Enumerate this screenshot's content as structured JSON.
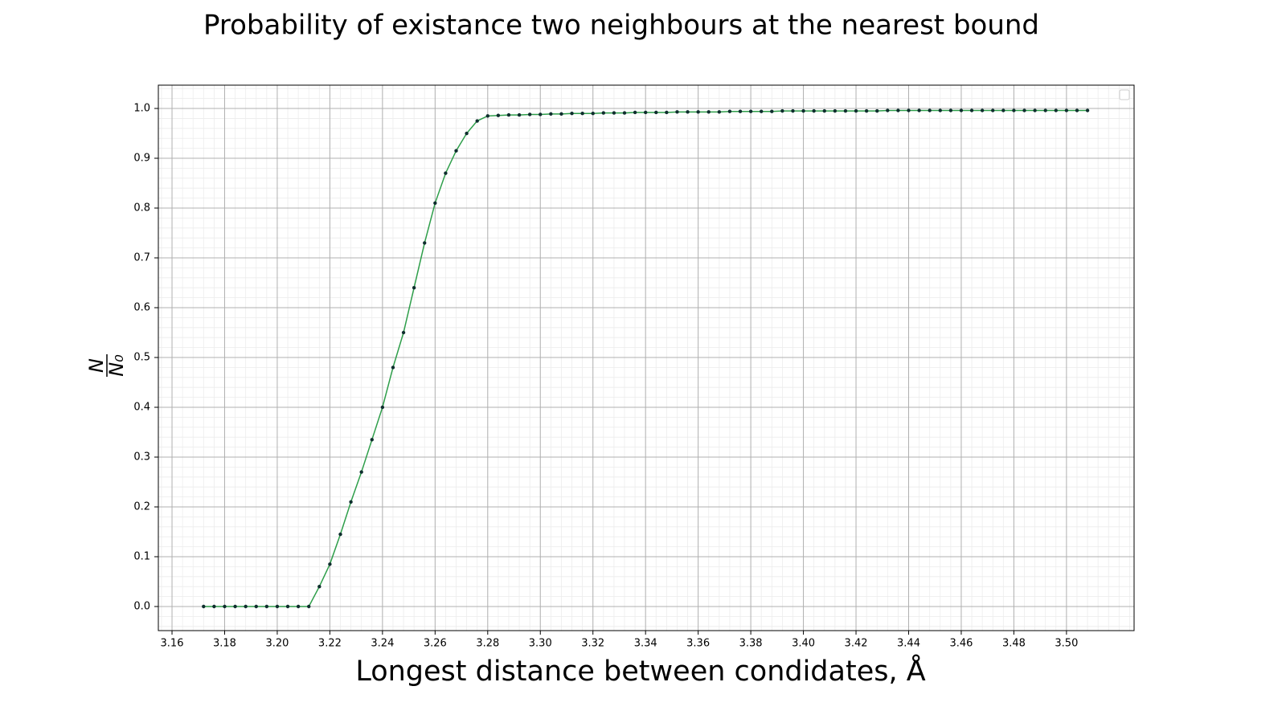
{
  "chart_data": {
    "type": "line",
    "title": "Probability of existance two neighbours at the nearest bound",
    "xlabel": "Longest distance between condidates, Å",
    "ylabel": {
      "numerator": "N",
      "denominator": "N₀"
    },
    "x": [
      3.172,
      3.176,
      3.18,
      3.184,
      3.188,
      3.192,
      3.196,
      3.2,
      3.204,
      3.208,
      3.212,
      3.216,
      3.22,
      3.224,
      3.228,
      3.232,
      3.236,
      3.24,
      3.244,
      3.248,
      3.252,
      3.256,
      3.26,
      3.264,
      3.268,
      3.272,
      3.276,
      3.28,
      3.284,
      3.288,
      3.292,
      3.296,
      3.3,
      3.304,
      3.308,
      3.312,
      3.316,
      3.32,
      3.324,
      3.328,
      3.332,
      3.336,
      3.34,
      3.344,
      3.348,
      3.352,
      3.356,
      3.36,
      3.364,
      3.368,
      3.372,
      3.376,
      3.38,
      3.384,
      3.388,
      3.392,
      3.396,
      3.4,
      3.404,
      3.408,
      3.412,
      3.416,
      3.42,
      3.424,
      3.428,
      3.432,
      3.436,
      3.44,
      3.444,
      3.448,
      3.452,
      3.456,
      3.46,
      3.464,
      3.468,
      3.472,
      3.476,
      3.48,
      3.484,
      3.488,
      3.492,
      3.496,
      3.5,
      3.504,
      3.508
    ],
    "series": [
      {
        "color": "#2e9e4a",
        "marker_color": "#0f2e2e",
        "values": [
          0,
          0,
          0,
          0,
          0,
          0,
          0,
          0,
          0,
          0,
          0,
          0.04,
          0.085,
          0.145,
          0.21,
          0.27,
          0.335,
          0.4,
          0.48,
          0.55,
          0.64,
          0.73,
          0.81,
          0.87,
          0.915,
          0.95,
          0.975,
          0.985,
          0.986,
          0.987,
          0.987,
          0.988,
          0.988,
          0.989,
          0.989,
          0.99,
          0.99,
          0.99,
          0.991,
          0.991,
          0.991,
          0.992,
          0.992,
          0.992,
          0.992,
          0.993,
          0.993,
          0.993,
          0.993,
          0.993,
          0.994,
          0.994,
          0.994,
          0.994,
          0.994,
          0.995,
          0.995,
          0.995,
          0.995,
          0.995,
          0.995,
          0.995,
          0.995,
          0.995,
          0.995,
          0.996,
          0.996,
          0.996,
          0.996,
          0.996,
          0.996,
          0.996,
          0.996,
          0.996,
          0.996,
          0.996,
          0.996,
          0.996,
          0.996,
          0.996,
          0.996,
          0.996,
          0.996,
          0.996,
          0.996
        ]
      }
    ],
    "xlim": [
      3.1548,
      3.5257
    ],
    "ylim": [
      -0.0484,
      1.0468
    ],
    "xticks": [
      3.16,
      3.18,
      {
        "value": 3.2,
        "label": "3.20"
      },
      3.22,
      3.24,
      3.26,
      3.28,
      {
        "value": 3.3,
        "label": "3.30"
      },
      3.32,
      3.34,
      3.36,
      3.38,
      {
        "value": 3.4,
        "label": "3.40"
      },
      3.42,
      3.44,
      3.46,
      3.48,
      {
        "value": 3.5,
        "label": "3.50"
      }
    ],
    "yticks": [
      {
        "value": 0,
        "label": "0.0"
      },
      0.1,
      0.2,
      0.3,
      0.4,
      0.5,
      0.6,
      0.7,
      0.8,
      0.9,
      {
        "value": 1,
        "label": "1.0"
      }
    ],
    "grid": true,
    "minor_grid": {
      "x_step": 0.004,
      "y_step": 0.02
    }
  }
}
